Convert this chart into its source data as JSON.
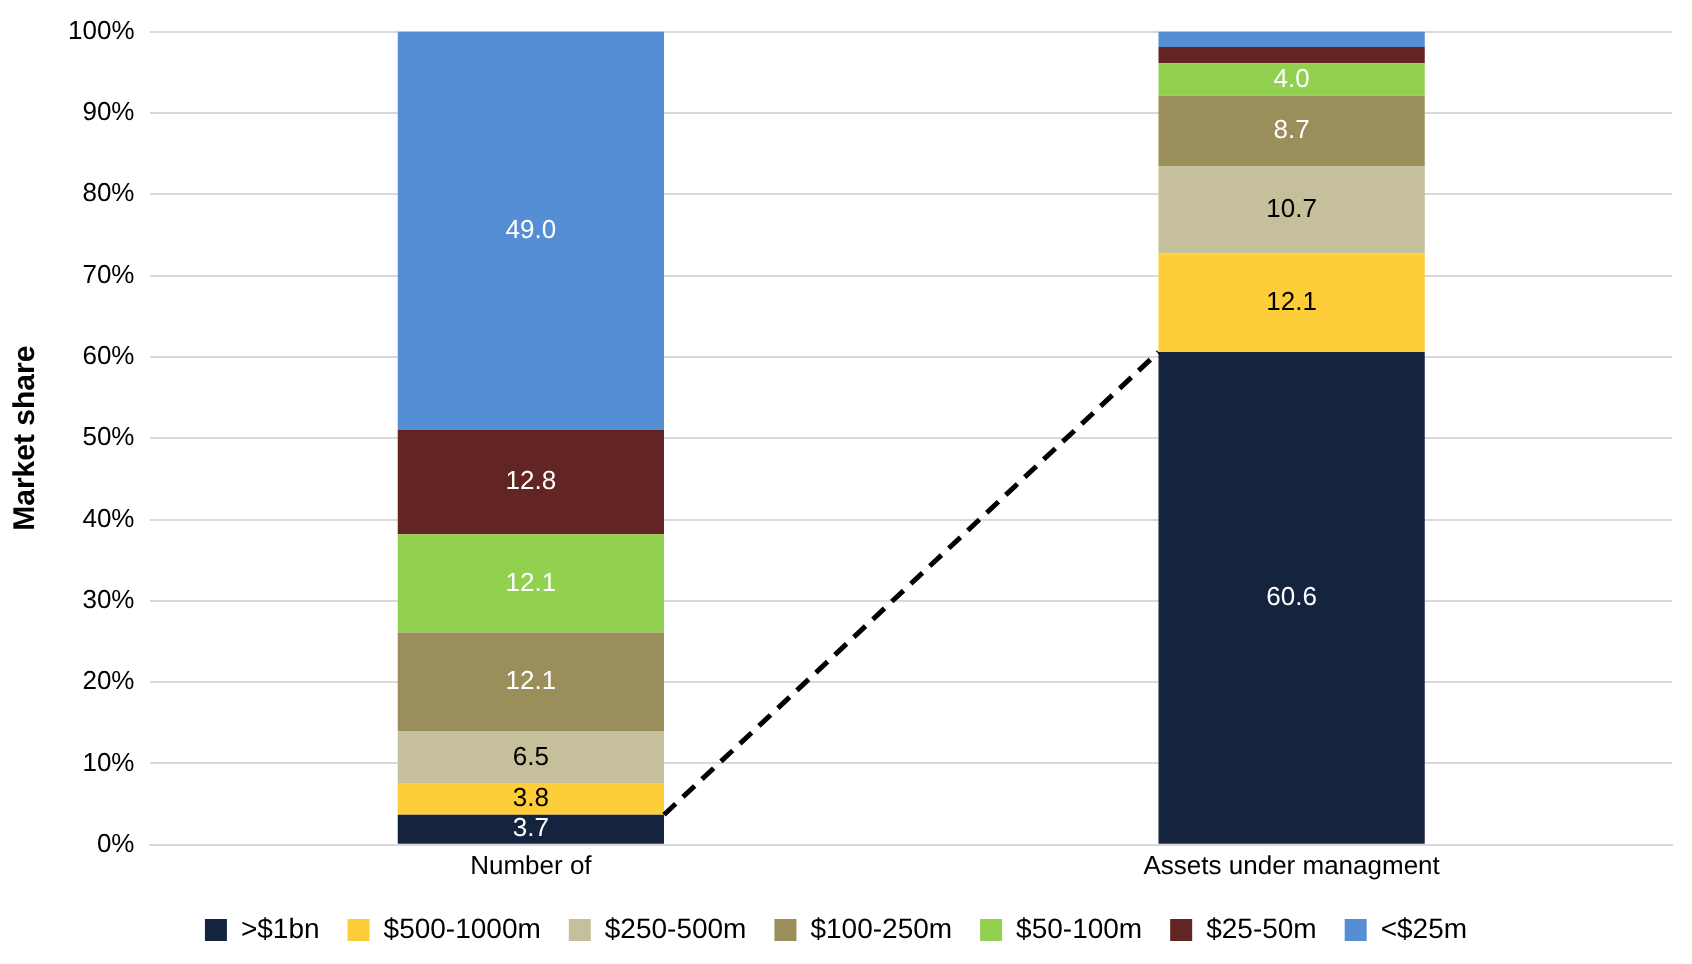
{
  "chart_data": {
    "type": "bar",
    "stacked": true,
    "ylabel": "Market share",
    "categories": [
      "Number of",
      "Assets under managment"
    ],
    "series": [
      {
        "name": ">$1bn",
        "color": "#14243f",
        "values": [
          3.7,
          60.6
        ],
        "value_labels": [
          "3.7",
          "60.6"
        ]
      },
      {
        "name": "$500-1000m",
        "color": "#fdcd3a",
        "values": [
          3.8,
          12.1
        ],
        "value_labels": [
          "3.8",
          "12.1"
        ]
      },
      {
        "name": "$250-500m",
        "color": "#c5bf9b",
        "values": [
          6.5,
          10.7
        ],
        "value_labels": [
          "6.5",
          "10.7"
        ]
      },
      {
        "name": "$100-250m",
        "color": "#9a8f5a",
        "values": [
          12.1,
          8.7
        ],
        "value_labels": [
          "12.1",
          "8.7"
        ]
      },
      {
        "name": "$50-100m",
        "color": "#92d050",
        "values": [
          12.1,
          4.0
        ],
        "value_labels": [
          "12.1",
          "4.0"
        ]
      },
      {
        "name": "$25-50m",
        "color": "#632523",
        "values": [
          12.8,
          2.0
        ],
        "value_labels": [
          "12.8",
          null
        ]
      },
      {
        "name": "<$25m",
        "color": "#558ed5",
        "values": [
          49.0,
          1.9
        ],
        "value_labels": [
          "49.0",
          null
        ]
      }
    ],
    "ylim": [
      0,
      100
    ],
    "yticks": [
      {
        "value": 0,
        "label": "0%"
      },
      {
        "value": 10,
        "label": "10%"
      },
      {
        "value": 20,
        "label": "20%"
      },
      {
        "value": 30,
        "label": "30%"
      },
      {
        "value": 40,
        "label": "40%"
      },
      {
        "value": 50,
        "label": "50%"
      },
      {
        "value": 60,
        "label": "60%"
      },
      {
        "value": 70,
        "label": "70%"
      },
      {
        "value": 80,
        "label": "80%"
      },
      {
        "value": 90,
        "label": "90%"
      },
      {
        "value": 100,
        "label": "100%"
      }
    ],
    "grid": "y",
    "legend": "bottom"
  }
}
